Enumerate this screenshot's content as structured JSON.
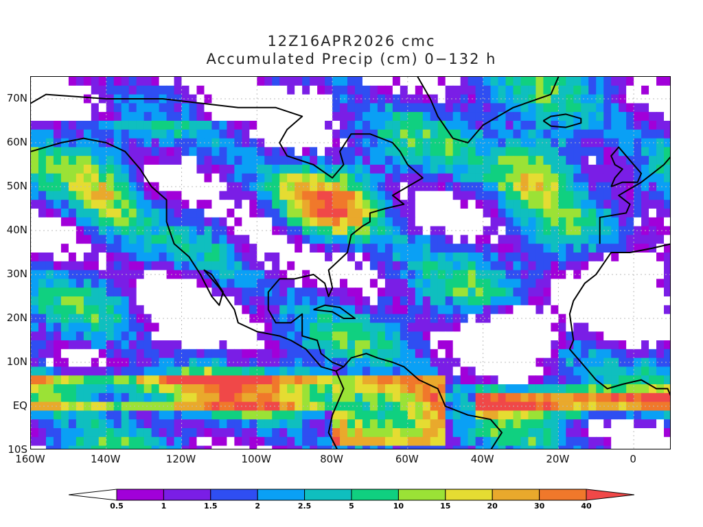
{
  "title": {
    "line1": "12Z16APR2026 cmc",
    "line2": "Accumulated Precip (cm) 0−132 h"
  },
  "map": {
    "lon_range": [
      -160,
      10
    ],
    "lat_range": [
      -10,
      75
    ],
    "lat_ticks": [
      {
        "value": 70,
        "label": "70N"
      },
      {
        "value": 60,
        "label": "60N"
      },
      {
        "value": 50,
        "label": "50N"
      },
      {
        "value": 40,
        "label": "40N"
      },
      {
        "value": 30,
        "label": "30N"
      },
      {
        "value": 20,
        "label": "20N"
      },
      {
        "value": 10,
        "label": "10N"
      },
      {
        "value": 0,
        "label": "EQ"
      },
      {
        "value": -10,
        "label": "10S"
      }
    ],
    "lon_ticks": [
      {
        "value": -160,
        "label": "160W"
      },
      {
        "value": -140,
        "label": "140W"
      },
      {
        "value": -120,
        "label": "120W"
      },
      {
        "value": -100,
        "label": "100W"
      },
      {
        "value": -80,
        "label": "80W"
      },
      {
        "value": -60,
        "label": "60W"
      },
      {
        "value": -40,
        "label": "40W"
      },
      {
        "value": -20,
        "label": "20W"
      },
      {
        "value": 0,
        "label": "0"
      }
    ],
    "grid": true
  },
  "colorbar": {
    "levels": [
      "0.5",
      "1",
      "1.5",
      "2",
      "2.5",
      "5",
      "10",
      "15",
      "20",
      "30",
      "40"
    ],
    "colors": [
      "#ffffff",
      "#a100d9",
      "#7a1ee6",
      "#2f4ef2",
      "#0aa0f5",
      "#0fbfbf",
      "#10d080",
      "#9be236",
      "#e5dc32",
      "#e9a92c",
      "#f0782b",
      "#f04848"
    ]
  }
}
